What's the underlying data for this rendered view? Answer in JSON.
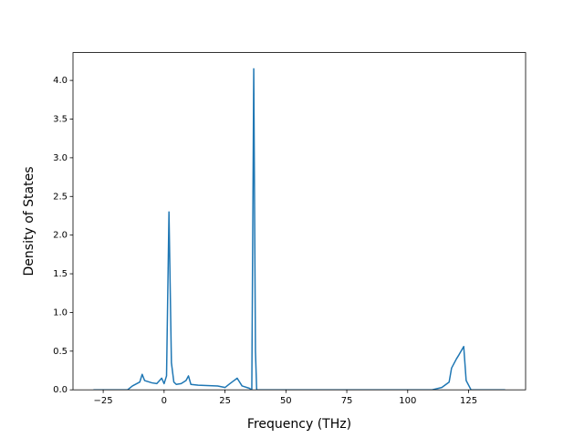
{
  "chart_data": {
    "type": "line",
    "xlabel": "Frequency (THz)",
    "ylabel": "Density of States",
    "x": [
      -29,
      -15,
      -13,
      -10,
      -9,
      -8,
      -5,
      -3,
      -1,
      0,
      1,
      2,
      3,
      4,
      5,
      7,
      9,
      10,
      11,
      14,
      22,
      25,
      27,
      30,
      32,
      35,
      36,
      36.8,
      37.5,
      38,
      110,
      114,
      117,
      118,
      120,
      121,
      123,
      124,
      126,
      140
    ],
    "series": [
      {
        "color": "#1f77b4",
        "values": [
          0,
          0,
          0.05,
          0.1,
          0.2,
          0.12,
          0.09,
          0.08,
          0.15,
          0.08,
          0.18,
          2.3,
          0.35,
          0.1,
          0.07,
          0.08,
          0.12,
          0.18,
          0.07,
          0.06,
          0.05,
          0.03,
          0.08,
          0.15,
          0.05,
          0.02,
          0,
          4.15,
          0.5,
          0,
          0,
          0.03,
          0.1,
          0.28,
          0.4,
          0.45,
          0.56,
          0.12,
          0,
          0
        ]
      }
    ],
    "xlim": [
      -37.4,
      148.4
    ],
    "ylim": [
      0,
      4.36
    ],
    "xticks": [
      {
        "value": -25,
        "label": "−25"
      },
      0,
      25,
      50,
      75,
      100,
      125
    ],
    "yticks": [
      {
        "value": 0,
        "label": "0.0"
      },
      0.5,
      {
        "value": 1,
        "label": "1.0"
      },
      1.5,
      {
        "value": 2,
        "label": "2.0"
      },
      2.5,
      {
        "value": 3,
        "label": "3.0"
      },
      3.5,
      {
        "value": 4,
        "label": "4.0"
      }
    ]
  }
}
